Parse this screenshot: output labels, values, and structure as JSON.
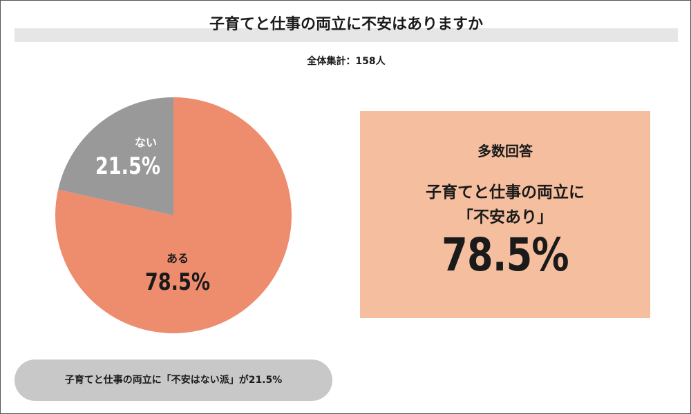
{
  "title": "子育てと仕事の両立に不安はありますか",
  "subtitle": "全体集計：158人",
  "colors": {
    "aru": "#ee8c6e",
    "nai": "#999999",
    "box": "#f5bf9f",
    "pill": "#c8c8c8"
  },
  "chart_data": {
    "type": "pie",
    "slices": [
      {
        "label": "ある",
        "value": 78.5,
        "value_label": "78.5%"
      },
      {
        "label": "ない",
        "value": 21.5,
        "value_label": "21.5%"
      }
    ]
  },
  "highlight": {
    "label": "多数回答",
    "line1": "子育てと仕事の両立に",
    "line2": "「不安あり」",
    "value": "78.5%"
  },
  "footnote": "子育てと仕事の両立に「不安はない派」が21.5%"
}
